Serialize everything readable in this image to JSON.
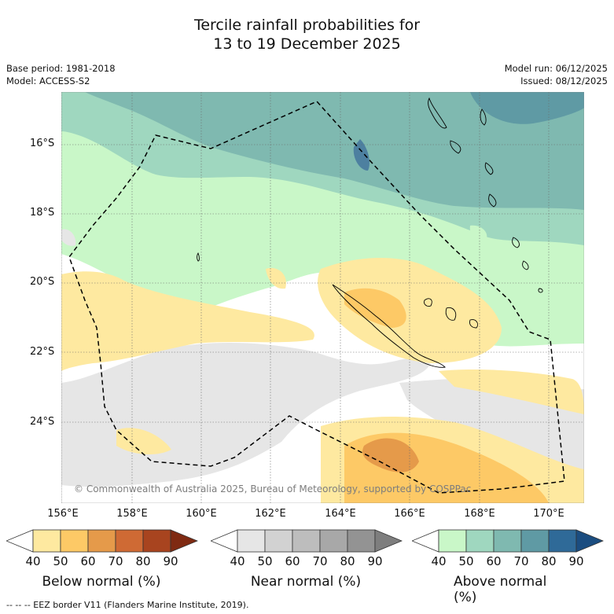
{
  "header": {
    "title_line1": "Tercile rainfall probabilities for",
    "title_line2": "13 to 19 December 2025",
    "base_period": "Base period: 1981-2018",
    "model": "Model: ACCESS-S2",
    "model_run": "Model run: 06/12/2025",
    "issued": "Issued: 08/12/2025"
  },
  "map": {
    "lat_labels": [
      "16°S",
      "18°S",
      "20°S",
      "22°S",
      "24°S"
    ],
    "lon_labels": [
      "156°E",
      "158°E",
      "160°E",
      "162°E",
      "164°E",
      "166°E",
      "168°E",
      "170°E"
    ],
    "copyright": "© Commonwealth of Australia 2025, Bureau of Meteorology, supported by COSPPac",
    "colors": {
      "below": [
        "#fee9a0",
        "#fdc966",
        "#e59a4a",
        "#cf6a34",
        "#a8441f",
        "#7f2a12"
      ],
      "near": [
        "#e6e6e6",
        "#d2d2d2",
        "#bdbdbd",
        "#a8a8a8",
        "#939393",
        "#7e7e7e"
      ],
      "above": [
        "#c9f7c8",
        "#9fd7bf",
        "#7fb9b0",
        "#5f9aa4",
        "#2f6a98",
        "#1b4d80"
      ]
    }
  },
  "colorbars": [
    {
      "title": "Below normal (%)",
      "ticks": [
        "40",
        "50",
        "60",
        "70",
        "80",
        "90"
      ]
    },
    {
      "title": "Near normal (%)",
      "ticks": [
        "40",
        "50",
        "60",
        "70",
        "80",
        "90"
      ]
    },
    {
      "title": "Above normal (%)",
      "ticks": [
        "40",
        "50",
        "60",
        "70",
        "80",
        "90"
      ]
    }
  ],
  "legend": {
    "eez": "--  --  -- EEZ border V11 (Flanders Marine Institute, 2019)."
  }
}
